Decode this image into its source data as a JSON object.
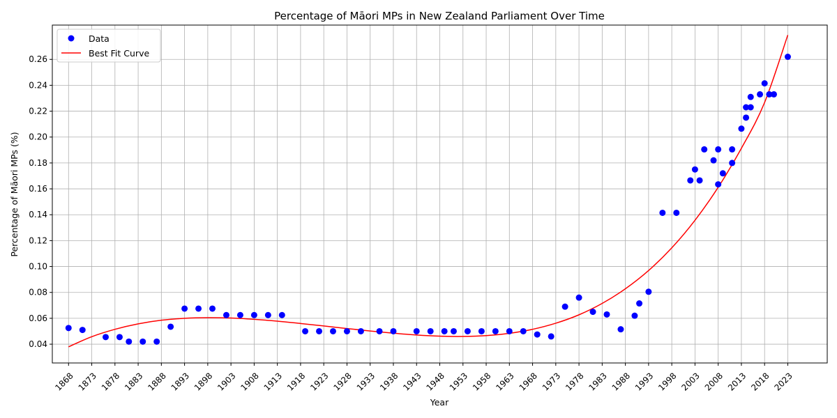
{
  "chart_data": {
    "type": "scatter",
    "title": "Percentage of Māori MPs in New Zealand Parliament Over Time",
    "xlabel": "Year",
    "ylabel": "Percentage of Māori MPs (%)",
    "xlim": [
      1864.5,
      2031.5
    ],
    "ylim": [
      0.0255,
      0.2865
    ],
    "grid": true,
    "legend_position": "upper-left",
    "x_ticks": [
      1868,
      1873,
      1878,
      1883,
      1888,
      1893,
      1898,
      1903,
      1908,
      1913,
      1918,
      1923,
      1928,
      1933,
      1938,
      1943,
      1948,
      1953,
      1958,
      1963,
      1968,
      1973,
      1978,
      1983,
      1988,
      1993,
      1998,
      2003,
      2008,
      2013,
      2018,
      2023
    ],
    "y_ticks": [
      "0.04",
      "0.06",
      "0.08",
      "0.10",
      "0.12",
      "0.14",
      "0.16",
      "0.18",
      "0.20",
      "0.22",
      "0.24",
      "0.26"
    ],
    "series": [
      {
        "name": "Data",
        "kind": "scatter",
        "color": "#0000ff",
        "x": [
          1868,
          1871,
          1876,
          1879,
          1881,
          1884,
          1887,
          1890,
          1893,
          1896,
          1899,
          1902,
          1905,
          1908,
          1911,
          1914,
          1919,
          1922,
          1925,
          1928,
          1931,
          1935,
          1938,
          1943,
          1946,
          1949,
          1951,
          1954,
          1957,
          1960,
          1963,
          1966,
          1969,
          1972,
          1975,
          1978,
          1981,
          1984,
          1987,
          1990,
          1991,
          1993,
          1996,
          1999,
          2002,
          2003,
          2004,
          2005,
          2007,
          2008,
          2008,
          2009,
          2011,
          2011,
          2013,
          2014,
          2014,
          2015,
          2015,
          2017,
          2018,
          2019,
          2020,
          2023
        ],
        "y": [
          0.0525,
          0.051,
          0.0455,
          0.0455,
          0.042,
          0.042,
          0.042,
          0.0535,
          0.0675,
          0.0675,
          0.0675,
          0.0625,
          0.0625,
          0.0625,
          0.0625,
          0.0625,
          0.05,
          0.05,
          0.05,
          0.05,
          0.05,
          0.05,
          0.05,
          0.05,
          0.05,
          0.05,
          0.05,
          0.05,
          0.05,
          0.05,
          0.05,
          0.05,
          0.0475,
          0.046,
          0.069,
          0.076,
          0.065,
          0.063,
          0.0515,
          0.062,
          0.0715,
          0.0805,
          0.1415,
          0.1415,
          0.1665,
          0.175,
          0.1665,
          0.1905,
          0.182,
          0.1635,
          0.1905,
          0.172,
          0.1905,
          0.18,
          0.2065,
          0.215,
          0.223,
          0.223,
          0.231,
          0.233,
          0.2415,
          0.233,
          0.233,
          0.262
        ]
      },
      {
        "name": "Best Fit Curve",
        "kind": "line",
        "color": "#ff0000",
        "x": [
          1868,
          1873,
          1878,
          1883,
          1888,
          1893,
          1898,
          1903,
          1908,
          1913,
          1918,
          1923,
          1928,
          1933,
          1938,
          1943,
          1948,
          1953,
          1958,
          1963,
          1968,
          1973,
          1978,
          1983,
          1988,
          1993,
          1998,
          2003,
          2008,
          2013,
          2018,
          2023
        ],
        "y": [
          0.038,
          0.0458,
          0.0515,
          0.0557,
          0.0585,
          0.06,
          0.0605,
          0.0602,
          0.0592,
          0.0578,
          0.056,
          0.0541,
          0.0521,
          0.0502,
          0.0485,
          0.0471,
          0.0462,
          0.046,
          0.0466,
          0.0484,
          0.0515,
          0.0562,
          0.0627,
          0.0715,
          0.0828,
          0.0969,
          0.1144,
          0.1357,
          0.1612,
          0.1913,
          0.2267,
          0.2788
        ]
      }
    ]
  }
}
